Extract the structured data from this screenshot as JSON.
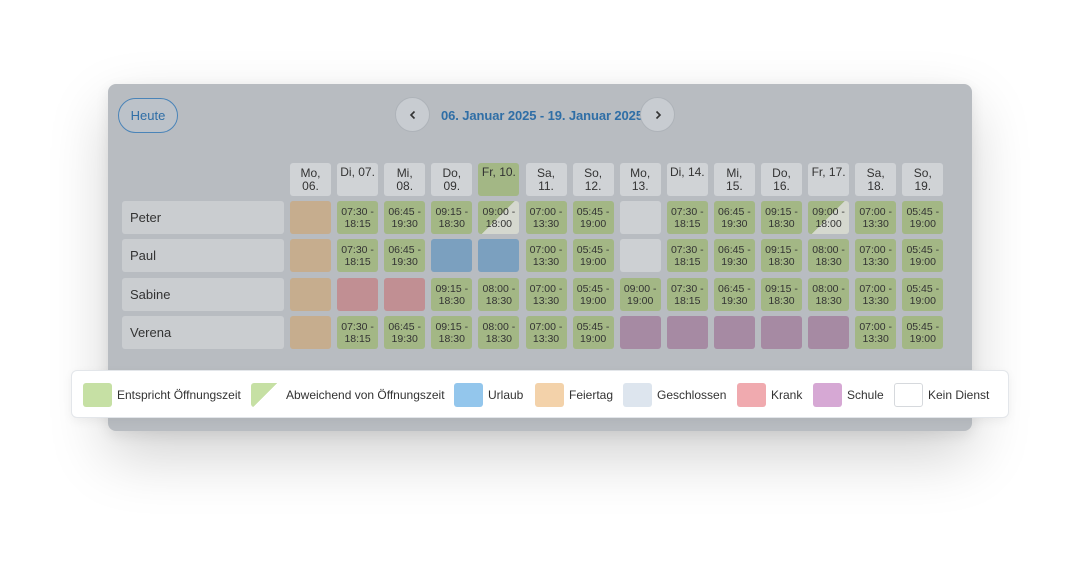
{
  "toolbar": {
    "today_label": "Heute",
    "date_range": "06. Januar 2025 - 19. Januar 2025"
  },
  "days": [
    {
      "l1": "Mo,",
      "l2": "06."
    },
    {
      "l1": "Di, 07.",
      "l2": ""
    },
    {
      "l1": "Mi,",
      "l2": "08."
    },
    {
      "l1": "Do,",
      "l2": "09."
    },
    {
      "l1": "Fr, 10.",
      "l2": ""
    },
    {
      "l1": "Sa,",
      "l2": "11."
    },
    {
      "l1": "So,",
      "l2": "12."
    },
    {
      "l1": "Mo,",
      "l2": "13."
    },
    {
      "l1": "Di, 14.",
      "l2": ""
    },
    {
      "l1": "Mi,",
      "l2": "15."
    },
    {
      "l1": "Do,",
      "l2": "16."
    },
    {
      "l1": "Fr, 17.",
      "l2": ""
    },
    {
      "l1": "Sa,",
      "l2": "18."
    },
    {
      "l1": "So,",
      "l2": "19."
    }
  ],
  "employees": [
    {
      "name": "Peter",
      "shifts": [
        {
          "type": "feiertag"
        },
        {
          "type": "open",
          "t1": "07:30 -",
          "t2": "18:15"
        },
        {
          "type": "open",
          "t1": "06:45 -",
          "t2": "19:30"
        },
        {
          "type": "open",
          "t1": "09:15 -",
          "t2": "18:30"
        },
        {
          "type": "abweichend",
          "t1": "09:00 -",
          "t2": "18:00"
        },
        {
          "type": "open",
          "t1": "07:00 -",
          "t2": "13:30"
        },
        {
          "type": "open",
          "t1": "05:45 -",
          "t2": "19:00"
        },
        {
          "type": "geschlossen"
        },
        {
          "type": "open",
          "t1": "07:30 -",
          "t2": "18:15"
        },
        {
          "type": "open",
          "t1": "06:45 -",
          "t2": "19:30"
        },
        {
          "type": "open",
          "t1": "09:15 -",
          "t2": "18:30"
        },
        {
          "type": "abweichend",
          "t1": "09:00 -",
          "t2": "18:00"
        },
        {
          "type": "open",
          "t1": "07:00 -",
          "t2": "13:30"
        },
        {
          "type": "open",
          "t1": "05:45 -",
          "t2": "19:00"
        }
      ]
    },
    {
      "name": "Paul",
      "shifts": [
        {
          "type": "feiertag"
        },
        {
          "type": "open",
          "t1": "07:30 -",
          "t2": "18:15"
        },
        {
          "type": "open",
          "t1": "06:45 -",
          "t2": "19:30"
        },
        {
          "type": "urlaub"
        },
        {
          "type": "urlaub"
        },
        {
          "type": "open",
          "t1": "07:00 -",
          "t2": "13:30"
        },
        {
          "type": "open",
          "t1": "05:45 -",
          "t2": "19:00"
        },
        {
          "type": "geschlossen"
        },
        {
          "type": "open",
          "t1": "07:30 -",
          "t2": "18:15"
        },
        {
          "type": "open",
          "t1": "06:45 -",
          "t2": "19:30"
        },
        {
          "type": "open",
          "t1": "09:15 -",
          "t2": "18:30"
        },
        {
          "type": "open",
          "t1": "08:00 -",
          "t2": "18:30"
        },
        {
          "type": "open",
          "t1": "07:00 -",
          "t2": "13:30"
        },
        {
          "type": "open",
          "t1": "05:45 -",
          "t2": "19:00"
        }
      ]
    },
    {
      "name": "Sabine",
      "shifts": [
        {
          "type": "feiertag"
        },
        {
          "type": "krank"
        },
        {
          "type": "krank"
        },
        {
          "type": "open",
          "t1": "09:15 -",
          "t2": "18:30"
        },
        {
          "type": "open",
          "t1": "08:00 -",
          "t2": "18:30"
        },
        {
          "type": "open",
          "t1": "07:00 -",
          "t2": "13:30"
        },
        {
          "type": "open",
          "t1": "05:45 -",
          "t2": "19:00"
        },
        {
          "type": "open",
          "t1": "09:00 -",
          "t2": "19:00"
        },
        {
          "type": "open",
          "t1": "07:30 -",
          "t2": "18:15"
        },
        {
          "type": "open",
          "t1": "06:45 -",
          "t2": "19:30"
        },
        {
          "type": "open",
          "t1": "09:15 -",
          "t2": "18:30"
        },
        {
          "type": "open",
          "t1": "08:00 -",
          "t2": "18:30"
        },
        {
          "type": "open",
          "t1": "07:00 -",
          "t2": "13:30"
        },
        {
          "type": "open",
          "t1": "05:45 -",
          "t2": "19:00"
        }
      ]
    },
    {
      "name": "Verena",
      "shifts": [
        {
          "type": "feiertag"
        },
        {
          "type": "open",
          "t1": "07:30 -",
          "t2": "18:15"
        },
        {
          "type": "open",
          "t1": "06:45 -",
          "t2": "19:30"
        },
        {
          "type": "open",
          "t1": "09:15 -",
          "t2": "18:30"
        },
        {
          "type": "open",
          "t1": "08:00 -",
          "t2": "18:30"
        },
        {
          "type": "open",
          "t1": "07:00 -",
          "t2": "13:30"
        },
        {
          "type": "open",
          "t1": "05:45 -",
          "t2": "19:00"
        },
        {
          "type": "schule"
        },
        {
          "type": "schule"
        },
        {
          "type": "schule"
        },
        {
          "type": "schule"
        },
        {
          "type": "schule"
        },
        {
          "type": "open",
          "t1": "07:00 -",
          "t2": "13:30"
        },
        {
          "type": "open",
          "t1": "05:45 -",
          "t2": "19:00"
        }
      ]
    }
  ],
  "legend": [
    {
      "key": "open",
      "label": "Entspricht Öffnungszeit",
      "color": "#c6e0a4"
    },
    {
      "key": "abweichend",
      "label": "Abweichend von Öffnungszeit",
      "color": "#c6e0a4"
    },
    {
      "key": "urlaub",
      "label": "Urlaub",
      "color": "#93c6ec"
    },
    {
      "key": "feiertag",
      "label": "Feiertag",
      "color": "#f3d2aa"
    },
    {
      "key": "geschlossen",
      "label": "Geschlossen",
      "color": "#dde5ee"
    },
    {
      "key": "krank",
      "label": "Krank",
      "color": "#f0aaaf"
    },
    {
      "key": "schule",
      "label": "Schule",
      "color": "#d6a8d4"
    },
    {
      "key": "keindienst",
      "label": "Kein Dienst",
      "color": "#ffffff"
    }
  ],
  "icons": {
    "prev": "chevron-left-icon",
    "next": "chevron-right-icon"
  }
}
